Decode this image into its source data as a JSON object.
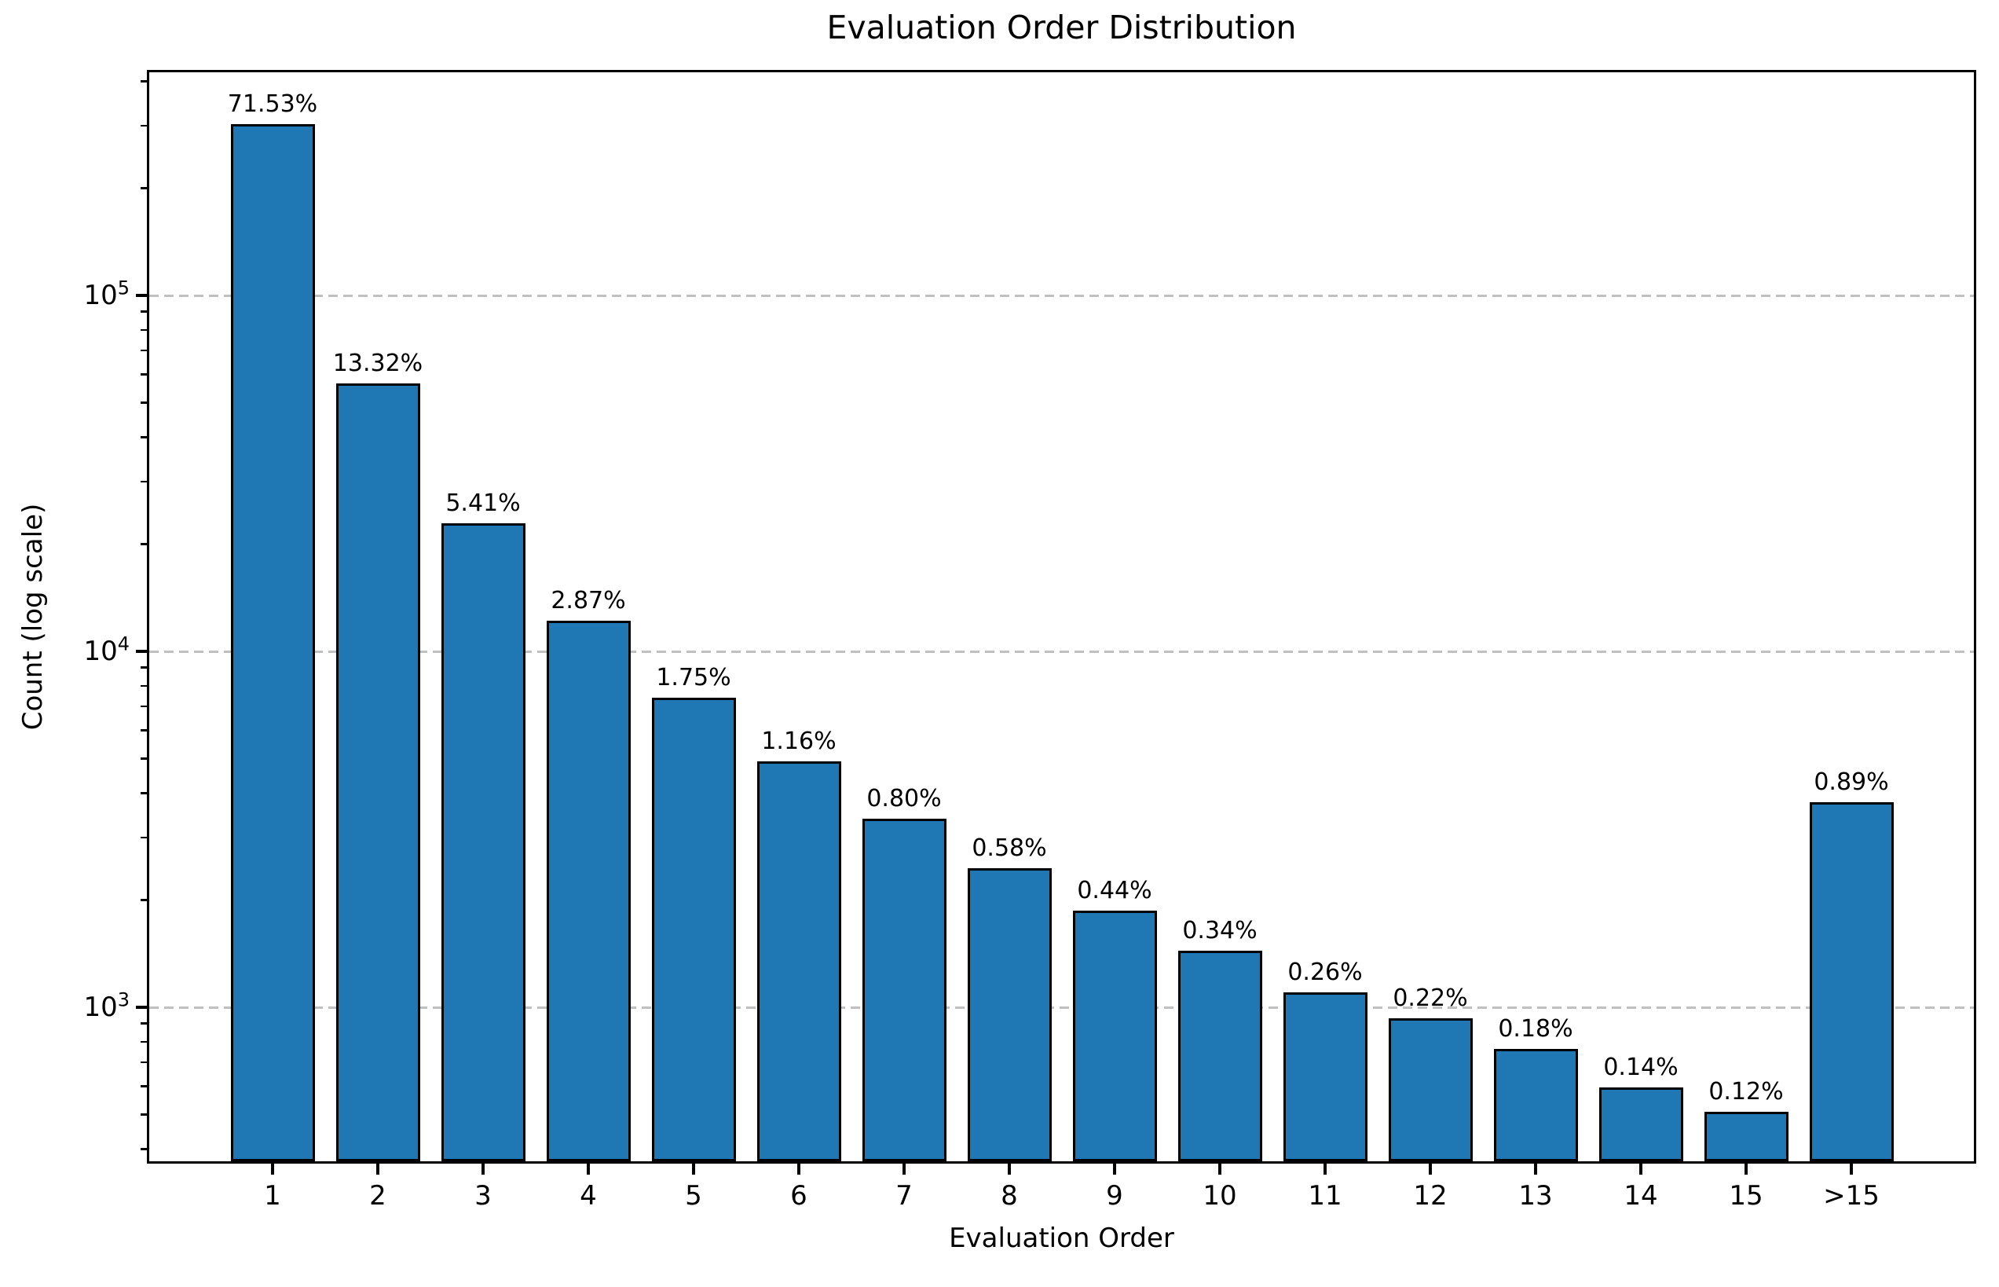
{
  "chart_data": {
    "type": "bar",
    "title": "Evaluation Order Distribution",
    "xlabel": "Evaluation Order",
    "ylabel": "Count (log scale)",
    "yscale": "log",
    "ylim": [
      369,
      423000
    ],
    "grid": {
      "axis": "y",
      "style": "dashed",
      "at_values": [
        1000,
        10000,
        100000
      ],
      "axisbelow": true
    },
    "legend": null,
    "categories": [
      "1",
      "2",
      "3",
      "4",
      "5",
      "6",
      "7",
      "8",
      "9",
      "10",
      "11",
      "12",
      "13",
      "14",
      "15",
      ">15"
    ],
    "bar_percent_labels": [
      "71.53%",
      "13.32%",
      "5.41%",
      "2.87%",
      "1.75%",
      "1.16%",
      "0.80%",
      "0.58%",
      "0.44%",
      "0.34%",
      "0.26%",
      "0.22%",
      "0.18%",
      "0.14%",
      "0.12%",
      "0.89%"
    ],
    "values_estimated_counts": [
      303000,
      56500,
      22900,
      12200,
      7420,
      4920,
      3390,
      2460,
      1870,
      1440,
      1100,
      933,
      763,
      594,
      509,
      3770
    ],
    "y_ticks": [
      {
        "value": 1000,
        "base": "10",
        "exponent": "3"
      },
      {
        "value": 10000,
        "base": "10",
        "exponent": "4"
      },
      {
        "value": 100000,
        "base": "10",
        "exponent": "5"
      }
    ]
  },
  "colors": {
    "bar_fill": "#1f77b4",
    "bar_edge": "#000000",
    "gridline": "#c0c0c0",
    "axis_text": "#000000",
    "background": "#ffffff"
  }
}
